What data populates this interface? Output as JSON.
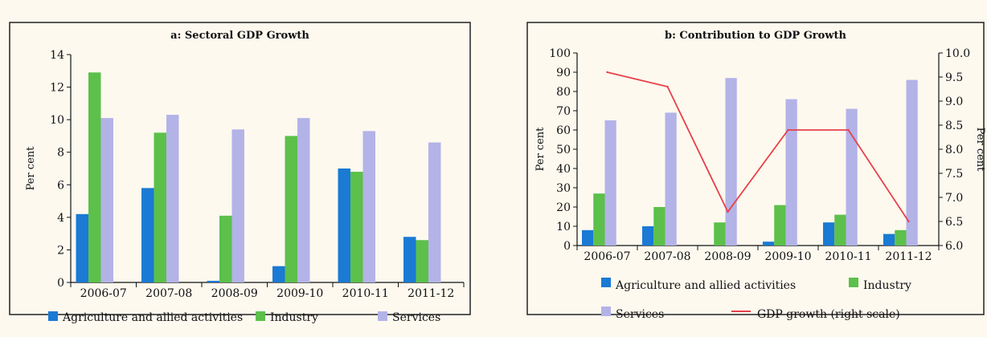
{
  "colors": {
    "agriculture": "#1a7ad4",
    "industry": "#5cc04a",
    "services": "#b3b3e8",
    "gdp_line": "#e8404a",
    "panel_bg": "#fdf9ef",
    "frame": "#222222"
  },
  "chart_data": [
    {
      "type": "bar",
      "title": "a: Sectoral GDP Growth",
      "ylabel": "Per cent",
      "xlabel": "",
      "ylim": [
        0,
        14
      ],
      "yticks": [
        "0",
        "2",
        "4",
        "6",
        "8",
        "10",
        "12",
        "14"
      ],
      "categories": [
        "2006-07",
        "2007-08",
        "2008-09",
        "2009-10",
        "2010-11",
        "2011-12"
      ],
      "series": [
        {
          "name": "Agriculture and allied activities",
          "color_key": "agriculture",
          "values": [
            4.2,
            5.8,
            0.1,
            1.0,
            7.0,
            2.8
          ]
        },
        {
          "name": "Industry",
          "color_key": "industry",
          "values": [
            12.9,
            9.2,
            4.1,
            9.0,
            6.8,
            2.6
          ]
        },
        {
          "name": "Services",
          "color_key": "services",
          "values": [
            10.1,
            10.3,
            9.4,
            10.1,
            9.3,
            8.6
          ]
        }
      ],
      "legend": [
        "Agriculture and allied activities",
        "Industry",
        "Services"
      ],
      "legend_position": "bottom",
      "grid": false
    },
    {
      "type": "bar",
      "title": "b:  Contribution to GDP Growth",
      "ylabel": "Per cent",
      "y2label": "Per cent",
      "xlabel": "",
      "ylim": [
        0,
        100
      ],
      "y2lim": [
        6.0,
        10.0
      ],
      "yticks": [
        "0",
        "10",
        "20",
        "30",
        "40",
        "50",
        "60",
        "70",
        "80",
        "90",
        "100"
      ],
      "y2ticks": [
        "6.0",
        "6.5",
        "7.0",
        "7.5",
        "8.0",
        "8.5",
        "9.0",
        "9.5",
        "10.0"
      ],
      "categories": [
        "2006-07",
        "2007-08",
        "2008-09",
        "2009-10",
        "2010-11",
        "2011-12"
      ],
      "series": [
        {
          "name": "Agriculture and allied activities",
          "color_key": "agriculture",
          "values": [
            8,
            10,
            0,
            2,
            12,
            6
          ]
        },
        {
          "name": "Industry",
          "color_key": "industry",
          "values": [
            27,
            20,
            12,
            21,
            16,
            8
          ]
        },
        {
          "name": "Services",
          "color_key": "services",
          "values": [
            65,
            69,
            87,
            76,
            71,
            86
          ]
        }
      ],
      "line": {
        "name": "GDP growth  (right scale)",
        "color_key": "gdp_line",
        "axis": "right",
        "values": [
          9.6,
          9.3,
          6.7,
          8.4,
          8.4,
          6.5
        ]
      },
      "legend": [
        "Agriculture and allied activities",
        "Industry",
        "Services",
        "GDP growth  (right scale)"
      ],
      "legend_position": "bottom",
      "grid": false
    }
  ]
}
